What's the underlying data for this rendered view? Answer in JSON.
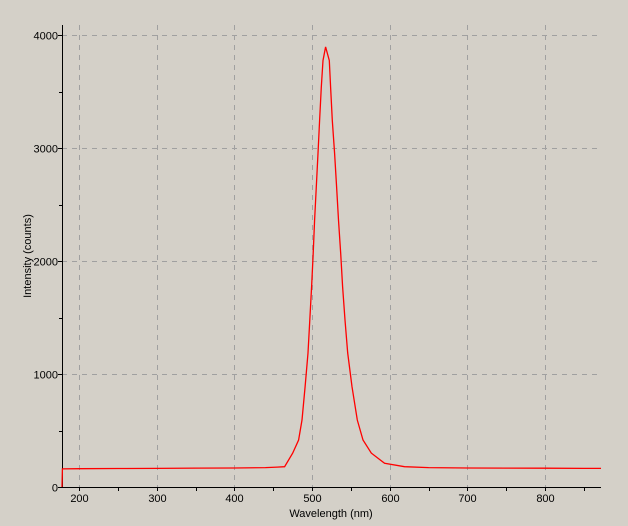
{
  "chart_data": {
    "type": "line",
    "title": "",
    "xlabel": "Wavelength (nm)",
    "ylabel": "Intensity (counts)",
    "xlim": [
      178,
      872
    ],
    "ylim": [
      0,
      4090
    ],
    "xticks": [
      200,
      300,
      400,
      500,
      600,
      700,
      800
    ],
    "yticks": [
      0,
      1000,
      2000,
      3000,
      4000
    ],
    "grid": true,
    "colors": {
      "background": "#d4d0c8",
      "series": "#ff0000",
      "grid": "#a0a0a0",
      "axis": "#000000"
    },
    "series": [
      {
        "x": [
          178,
          178.5,
          200,
          250,
          300,
          350,
          400,
          440,
          455,
          464.6,
          475,
          482.6,
          487,
          491,
          494.7,
          497,
          499.4,
          501.5,
          503.2,
          505.4,
          507.6,
          509.7,
          511.9,
          514,
          517.4,
          522.2,
          523.9,
          526,
          529,
          531.6,
          534,
          536.8,
          539.3,
          542.4,
          545.8,
          551.4,
          558.2,
          565.6,
          576.3,
          593.4,
          619,
          650,
          700,
          750,
          800,
          850,
          872
        ],
        "y": [
          0,
          160,
          162,
          164,
          165,
          167,
          168,
          172,
          176,
          180,
          300,
          416,
          593,
          888,
          1186,
          1478,
          1773,
          2068,
          2363,
          2657,
          2953,
          3245,
          3540,
          3776,
          3896,
          3776,
          3540,
          3245,
          2953,
          2657,
          2363,
          2068,
          1773,
          1478,
          1186,
          888,
          593,
          416,
          300,
          210,
          180,
          172,
          168,
          167,
          166,
          165,
          165
        ]
      }
    ]
  }
}
